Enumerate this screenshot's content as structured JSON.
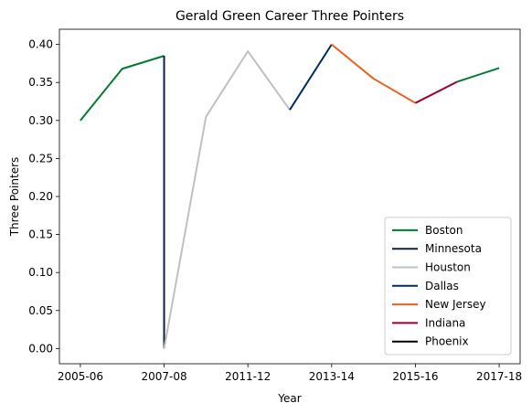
{
  "chart_data": {
    "type": "line",
    "title": "Gerald Green Career Three Pointers",
    "xlabel": "Year",
    "ylabel": "Three Pointers",
    "x_ticks": [
      "2005-06",
      "2007-08",
      "2011-12",
      "2013-14",
      "2015-16",
      "2017-18"
    ],
    "ylim": [
      -0.02,
      0.42
    ],
    "y_ticks": [
      "0.00",
      "0.05",
      "0.10",
      "0.15",
      "0.20",
      "0.25",
      "0.30",
      "0.35",
      "0.40"
    ],
    "grid": false,
    "legend_position": "lower right",
    "series": [
      {
        "name": "Boston",
        "color": "#007A33",
        "points": [
          [
            0,
            0.3
          ],
          [
            1,
            0.368
          ],
          [
            2,
            0.385
          ]
        ]
      },
      {
        "name": "Boston",
        "color": "#007A33",
        "points": [
          [
            9,
            0.351
          ],
          [
            10,
            0.369
          ]
        ]
      },
      {
        "name": "Minnesota",
        "color": "#0C2340",
        "points": [
          [
            2,
            0.385
          ],
          [
            2,
            0.0
          ]
        ]
      },
      {
        "name": "Houston",
        "color": "#BEC0C2",
        "points": [
          [
            2,
            0.0
          ],
          [
            3,
            0.305
          ],
          [
            4,
            0.391
          ],
          [
            5,
            0.314
          ]
        ]
      },
      {
        "name": "Dallas",
        "color": "#002B5E",
        "points": [
          [
            5,
            0.314
          ],
          [
            6,
            0.4
          ]
        ]
      },
      {
        "name": "New Jersey",
        "color": "#E56020",
        "points": [
          [
            6,
            0.4
          ],
          [
            7,
            0.355
          ],
          [
            8,
            0.323
          ]
        ]
      },
      {
        "name": "Indiana",
        "color": "#98002E",
        "points": [
          [
            8,
            0.323
          ],
          [
            9,
            0.351
          ]
        ]
      },
      {
        "name": "Phoenix",
        "color": "#000000",
        "points": []
      }
    ],
    "legend": [
      {
        "name": "Boston",
        "color": "#007A33"
      },
      {
        "name": "Minnesota",
        "color": "#0C2340"
      },
      {
        "name": "Houston",
        "color": "#BEC0C2"
      },
      {
        "name": "Dallas",
        "color": "#002B5E"
      },
      {
        "name": "New Jersey",
        "color": "#E56020"
      },
      {
        "name": "Indiana",
        "color": "#98002E"
      },
      {
        "name": "Phoenix",
        "color": "#000000"
      }
    ]
  }
}
